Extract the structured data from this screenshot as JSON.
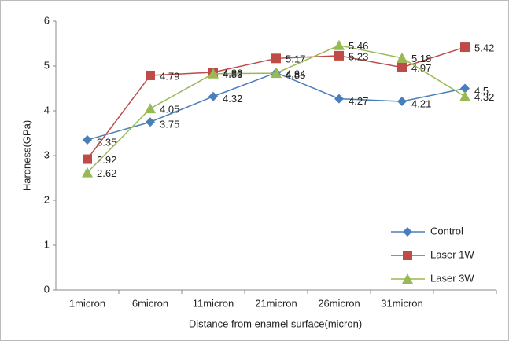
{
  "chart_data": {
    "type": "line",
    "y_label": "Hardness(GPa)",
    "x_label": "Distance from enamel surface(micron)",
    "categories": [
      "1micron",
      "6micron",
      "11micron",
      "21micron",
      "26micron",
      "31micron",
      null
    ],
    "series": [
      {
        "name": "Control",
        "color": "#4a7ebb",
        "marker": "diamond",
        "values": [
          3.35,
          3.75,
          4.32,
          4.85,
          4.27,
          4.21,
          4.5
        ]
      },
      {
        "name": "Laser 1W",
        "color": "#be4b48",
        "marker": "square",
        "values": [
          2.92,
          4.79,
          4.86,
          5.17,
          5.23,
          4.97,
          5.42
        ]
      },
      {
        "name": "Laser 3W",
        "color": "#98b954",
        "marker": "triangle",
        "values": [
          2.62,
          4.05,
          4.83,
          4.84,
          5.46,
          5.18,
          4.32
        ]
      }
    ],
    "ylim": [
      0,
      6
    ],
    "yticks": [
      0,
      1,
      2,
      3,
      4,
      5,
      6
    ],
    "grid": false,
    "legend": "lower right"
  }
}
